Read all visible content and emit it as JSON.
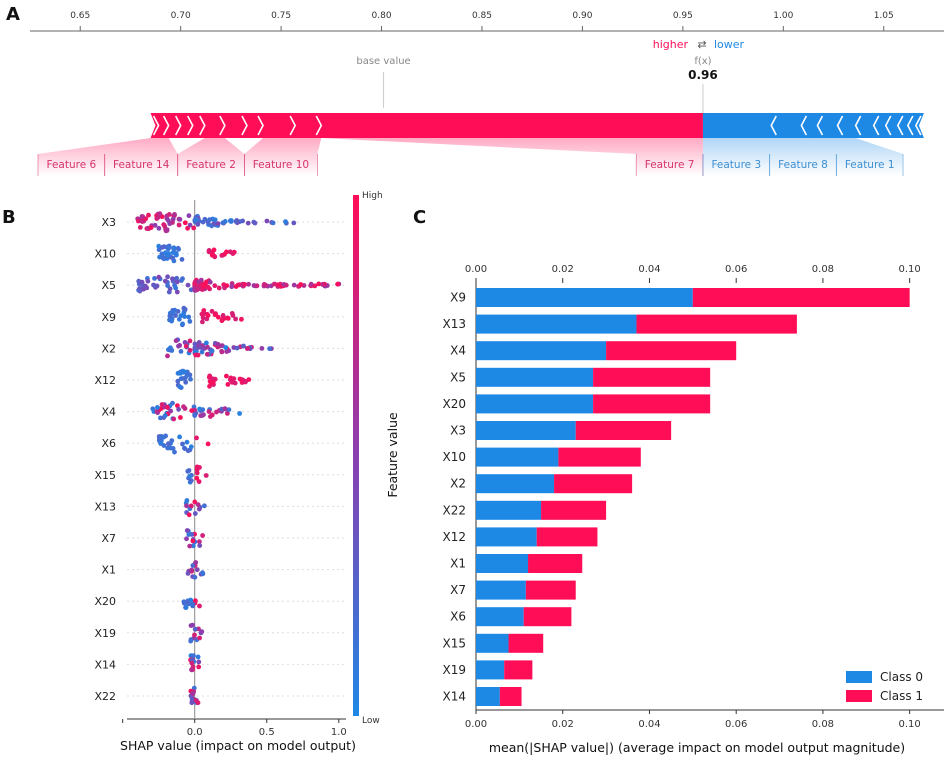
{
  "panels": {
    "a": "A",
    "b": "B",
    "c": "C"
  },
  "colors": {
    "red": "#ff0d57",
    "blue": "#1e88e5",
    "red_label": "#d6336c",
    "blue_label": "#3d8fd1"
  },
  "chart_data": [
    {
      "id": "A",
      "type": "force-plot",
      "axis_ticks": [
        "0.65",
        "0.70",
        "0.75",
        "0.80",
        "0.85",
        "0.90",
        "0.95",
        "1.00",
        "1.05"
      ],
      "xlim": [
        0.625,
        1.08
      ],
      "legend": {
        "higher": "higher",
        "arrow": "⇄",
        "lower": "lower"
      },
      "base_value_label": "base value",
      "base_value": 0.801,
      "fx_label": "f(x)",
      "fx_value": 0.96,
      "fx_text": "0.96",
      "bar_start": 0.685,
      "bar_end": 1.07,
      "red_segments": [
        0.685,
        0.689,
        0.694,
        0.7,
        0.706,
        0.712,
        0.722,
        0.733,
        0.741,
        0.757,
        0.77,
        0.96
      ],
      "blue_segments": [
        0.96,
        0.994,
        1.009,
        1.017,
        1.027,
        1.036,
        1.045,
        1.051,
        1.057,
        1.062,
        1.066,
        1.07
      ],
      "positive_features": [
        {
          "name": "Feature 6",
          "start": 0.685,
          "end": 0.689
        },
        {
          "name": "Feature 14",
          "start": 0.689,
          "end": 0.694
        },
        {
          "name": "Feature 2",
          "start": 0.712,
          "end": 0.722
        },
        {
          "name": "Feature 10",
          "start": 0.741,
          "end": 0.77
        },
        {
          "name": "Feature 7",
          "start": 0.77,
          "end": 0.96
        }
      ],
      "negative_features": [
        {
          "name": "Feature 3",
          "start": 0.96,
          "end": 0.994
        },
        {
          "name": "Feature 8",
          "start": 0.994,
          "end": 1.009
        },
        {
          "name": "Feature 1",
          "start": 1.009,
          "end": 1.036
        }
      ]
    },
    {
      "id": "B",
      "type": "scatter",
      "subtype": "beeswarm",
      "features": [
        "X3",
        "X10",
        "X5",
        "X9",
        "X2",
        "X12",
        "X4",
        "X6",
        "X15",
        "X13",
        "X7",
        "X1",
        "X20",
        "X19",
        "X14",
        "X22"
      ],
      "xlim": [
        -0.47,
        1.05
      ],
      "x_ticks": [
        -0.5,
        0.0,
        0.5,
        1.0
      ],
      "x_tick_labels": [
        "",
        "0.0",
        "0.5",
        "1.0"
      ],
      "xlabel": "SHAP value (impact on model output)",
      "colorbar": {
        "high": "High",
        "low": "Low",
        "label": "Feature value"
      },
      "spreads": [
        {
          "neg": [
            -0.4,
            0.0
          ],
          "pos": [
            0.0,
            0.7
          ],
          "grad": "neg-high"
        },
        {
          "neg": [
            -0.25,
            -0.08
          ],
          "pos": [
            0.1,
            0.28
          ],
          "grad": "split"
        },
        {
          "neg": [
            -0.4,
            0.0
          ],
          "pos": [
            0.0,
            1.03
          ],
          "grad": "pos-high"
        },
        {
          "neg": [
            -0.18,
            -0.02
          ],
          "pos": [
            0.05,
            0.36
          ],
          "grad": "split"
        },
        {
          "neg": [
            -0.2,
            0.0
          ],
          "pos": [
            0.0,
            0.6
          ],
          "grad": "mixed"
        },
        {
          "neg": [
            -0.12,
            -0.02
          ],
          "pos": [
            0.1,
            0.38
          ],
          "grad": "split"
        },
        {
          "neg": [
            -0.3,
            0.0
          ],
          "pos": [
            0.0,
            0.32
          ],
          "grad": "mixed"
        },
        {
          "neg": [
            -0.25,
            -0.02
          ],
          "pos": [
            0.0,
            0.1
          ],
          "grad": "split"
        },
        {
          "neg": [
            -0.05,
            0.0
          ],
          "pos": [
            0.0,
            0.08
          ],
          "grad": "split"
        },
        {
          "neg": [
            -0.06,
            0.0
          ],
          "pos": [
            0.0,
            0.07
          ],
          "grad": "mixed"
        },
        {
          "neg": [
            -0.06,
            0.0
          ],
          "pos": [
            0.0,
            0.06
          ],
          "grad": "mixed"
        },
        {
          "neg": [
            -0.05,
            0.0
          ],
          "pos": [
            0.0,
            0.06
          ],
          "grad": "mixed"
        },
        {
          "neg": [
            -0.08,
            0.0
          ],
          "pos": [
            0.0,
            0.04
          ],
          "grad": "split"
        },
        {
          "neg": [
            -0.03,
            0.0
          ],
          "pos": [
            0.0,
            0.05
          ],
          "grad": "mixed"
        },
        {
          "neg": [
            -0.03,
            0.0
          ],
          "pos": [
            0.0,
            0.03
          ],
          "grad": "mixed"
        },
        {
          "neg": [
            -0.03,
            0.0
          ],
          "pos": [
            0.0,
            0.03
          ],
          "grad": "mixed"
        }
      ]
    },
    {
      "id": "C",
      "type": "bar",
      "orientation": "horizontal",
      "stacked": true,
      "categories": [
        "X9",
        "X13",
        "X4",
        "X5",
        "X20",
        "X3",
        "X10",
        "X2",
        "X22",
        "X12",
        "X1",
        "X7",
        "X6",
        "X15",
        "X19",
        "X14"
      ],
      "series": [
        {
          "name": "Class 0",
          "values": [
            0.05,
            0.037,
            0.03,
            0.027,
            0.027,
            0.023,
            0.019,
            0.018,
            0.015,
            0.014,
            0.012,
            0.0115,
            0.011,
            0.0075,
            0.0065,
            0.0055
          ]
        },
        {
          "name": "Class 1",
          "values": [
            0.05,
            0.037,
            0.03,
            0.027,
            0.027,
            0.022,
            0.019,
            0.018,
            0.015,
            0.014,
            0.0125,
            0.0115,
            0.011,
            0.008,
            0.0065,
            0.005
          ]
        }
      ],
      "xlim": [
        0.0,
        0.104
      ],
      "x_ticks": [
        0.0,
        0.02,
        0.04,
        0.06,
        0.08,
        0.1
      ],
      "x_tick_labels": [
        "0.00",
        "0.02",
        "0.04",
        "0.06",
        "0.08",
        "0.10"
      ],
      "xlabel": "mean(|SHAP value|) (average impact on model output magnitude)",
      "legend_position": "lower-right"
    }
  ]
}
